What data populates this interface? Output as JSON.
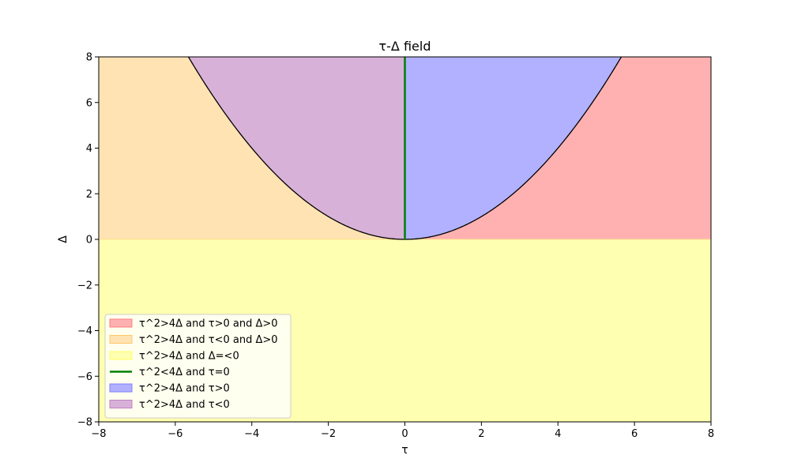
{
  "chart_data": {
    "type": "area",
    "title": "τ-Δ field",
    "xlabel": "τ",
    "ylabel": "Δ",
    "xlim": [
      -8,
      8
    ],
    "ylim": [
      -8,
      8
    ],
    "xticks": [
      -8,
      -6,
      -4,
      -2,
      0,
      2,
      4,
      6,
      8
    ],
    "yticks": [
      -8,
      -6,
      -4,
      -2,
      0,
      2,
      4,
      6,
      8
    ],
    "grid": false,
    "legend_position": "lower-left",
    "boundary_curve": "Δ = τ^2/4",
    "regions": [
      {
        "name": "τ^2>4Δ and τ>0 and Δ>0",
        "kind": "fill",
        "color": "#ffb1b1",
        "edge_color": "#ff8080",
        "x_range": [
          0,
          8
        ],
        "y_range": [
          0,
          8
        ],
        "below_curve": true
      },
      {
        "name": "τ^2>4Δ and τ<0 and Δ>0",
        "kind": "fill",
        "color": "#ffe3b3",
        "edge_color": "#ffc56a",
        "x_range": [
          -8,
          0
        ],
        "y_range": [
          0,
          8
        ],
        "below_curve": true
      },
      {
        "name": "τ^2>4Δ and Δ=<0",
        "kind": "fill",
        "color": "#ffffb1",
        "edge_color": "#ffff60",
        "x_range": [
          -8,
          8
        ],
        "y_range": [
          -8,
          0
        ]
      },
      {
        "name": "τ^2<4Δ and τ=0",
        "kind": "line",
        "color": "#008000",
        "x_value": 0,
        "y_range": [
          0,
          8
        ]
      },
      {
        "name": "τ^2>4Δ and τ>0",
        "kind": "fill",
        "color": "#b1b1ff",
        "edge_color": "#8080ff",
        "x_range": [
          0,
          8
        ],
        "y_range": [
          0,
          8
        ],
        "above_curve": true
      },
      {
        "name": "τ^2>4Δ and τ<0",
        "kind": "fill",
        "color": "#d8b1d8",
        "edge_color": "#c080c0",
        "x_range": [
          -8,
          0
        ],
        "y_range": [
          0,
          8
        ],
        "above_curve": true
      }
    ]
  }
}
